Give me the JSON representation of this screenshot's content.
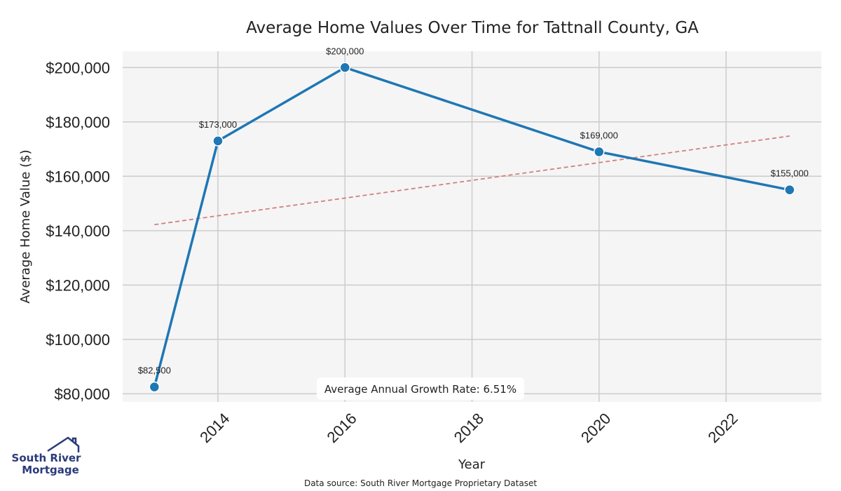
{
  "chart_data": {
    "type": "line",
    "title": "Average Home Values Over Time for Tattnall County, GA",
    "xlabel": "Year",
    "ylabel": "Average Home Value ($)",
    "x": [
      2013,
      2014,
      2016,
      2020,
      2023
    ],
    "values": [
      82500,
      173000,
      200000,
      169000,
      155000
    ],
    "value_labels": [
      "$82,500",
      "$173,000",
      "$200,000",
      "$169,000",
      "$155,000"
    ],
    "xticks": [
      2014,
      2016,
      2018,
      2020,
      2022
    ],
    "xtick_labels": [
      "2014",
      "2016",
      "2018",
      "2020",
      "2022"
    ],
    "yticks": [
      80000,
      100000,
      120000,
      140000,
      160000,
      180000,
      200000
    ],
    "ytick_labels": [
      "$80,000",
      "$100,000",
      "$120,000",
      "$140,000",
      "$160,000",
      "$180,000",
      "$200,000"
    ],
    "xlim": [
      2012.5,
      2023.5
    ],
    "ylim": [
      77000,
      206000
    ],
    "trend": {
      "x": [
        2013,
        2023
      ],
      "values": [
        142200,
        174800
      ]
    },
    "grid": true,
    "annotation": "Average Annual Growth Rate: 6.51%",
    "line_color": "#1f77b4",
    "trend_color": "#d47f7f",
    "plot_bg": "#f5f5f5",
    "grid_color": "#cccccc"
  },
  "source_text": "Data source: South River Mortgage Proprietary Dataset",
  "logo": {
    "line1": "South River",
    "line2": "Mortgage",
    "color": "#2b3a7a"
  }
}
